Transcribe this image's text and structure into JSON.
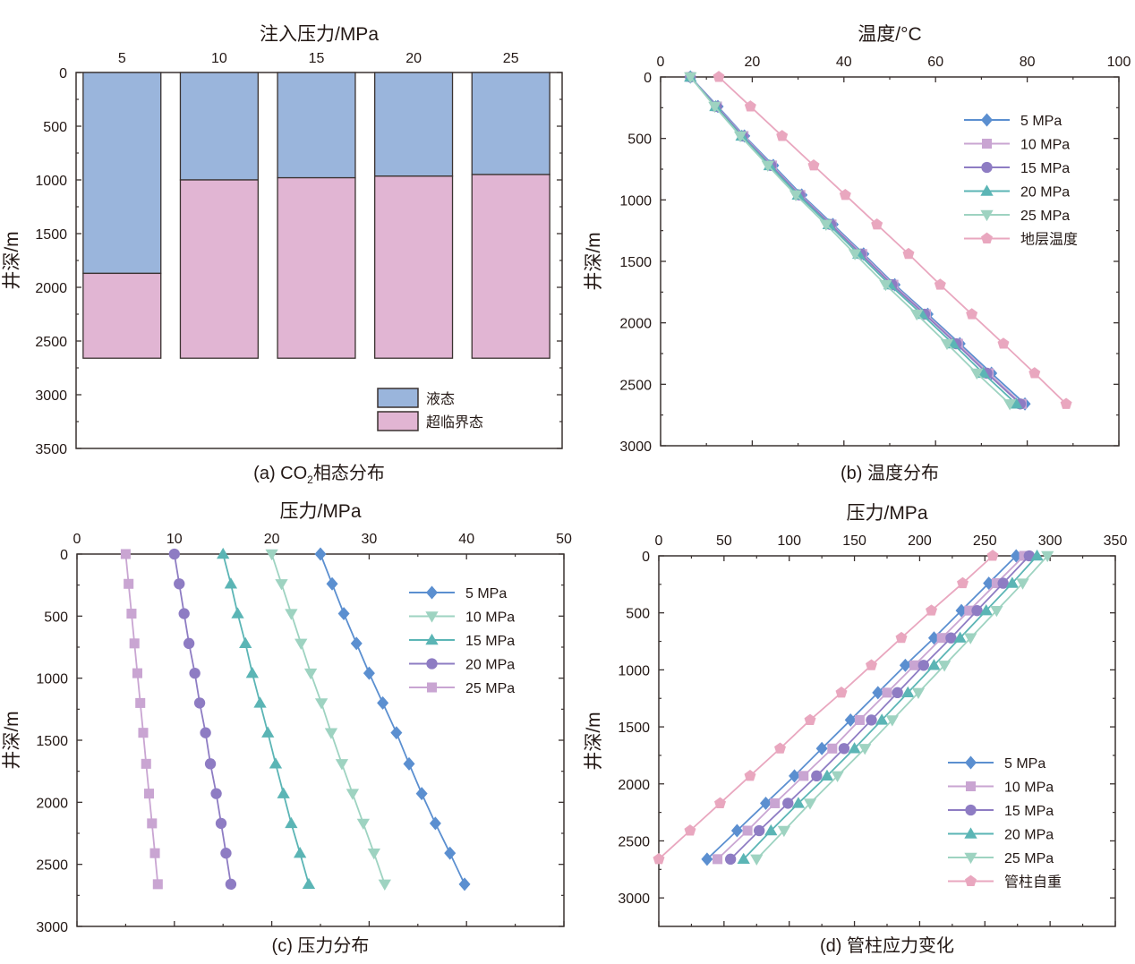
{
  "chart_data": [
    {
      "id": "a",
      "type": "bar",
      "title": "注入压力/MPa",
      "caption": "(a) CO₂相态分布",
      "xlabel": "注入压力/MPa",
      "ylabel": "井深/m",
      "categories": [
        "5",
        "10",
        "15",
        "20",
        "25"
      ],
      "ylim": [
        0,
        3500
      ],
      "yticks": [
        0,
        500,
        1000,
        1500,
        2000,
        2500,
        3000,
        3500
      ],
      "y_inverted": true,
      "total_depth": 2660,
      "series": [
        {
          "name": "液态",
          "color": "#9AB5DC",
          "from": [
            0,
            0,
            0,
            0,
            0
          ],
          "to": [
            1870,
            1000,
            980,
            965,
            950
          ]
        },
        {
          "name": "超临界态",
          "color": "#E1B5D3",
          "from": [
            1870,
            1000,
            980,
            965,
            950
          ],
          "to": [
            2660,
            2660,
            2660,
            2660,
            2660
          ]
        }
      ],
      "legend": {
        "position": "bottom-right",
        "entries": [
          "液态",
          "超临界态"
        ]
      }
    },
    {
      "id": "b",
      "type": "line",
      "title": "温度/°C",
      "caption": "(b) 温度分布",
      "xlabel": "温度/°C",
      "ylabel": "井深/m",
      "xlim": [
        0,
        100
      ],
      "xticks": [
        0,
        20,
        40,
        60,
        80,
        100
      ],
      "ylim": [
        0,
        3000
      ],
      "yticks": [
        0,
        500,
        1000,
        1500,
        2000,
        2500,
        3000
      ],
      "y_inverted": true,
      "depths": [
        0,
        240,
        480,
        720,
        960,
        1200,
        1440,
        1690,
        1930,
        2170,
        2410,
        2660
      ],
      "series": [
        {
          "name": "5 MPa",
          "marker": "diamond",
          "color": "#5B8FD0",
          "values": [
            6.5,
            12.5,
            18.3,
            24.6,
            30.8,
            37.6,
            44.3,
            51.1,
            58.3,
            65.3,
            72.2,
            79.5
          ]
        },
        {
          "name": "10 MPa",
          "marker": "square",
          "color": "#C9A5D2",
          "values": [
            6.5,
            12.3,
            18.1,
            24.3,
            30.5,
            37.3,
            44.0,
            50.8,
            57.9,
            64.9,
            71.6,
            78.8
          ]
        },
        {
          "name": "15 MPa",
          "marker": "circle",
          "color": "#8E7CC3",
          "values": [
            6.5,
            12.2,
            17.9,
            24.1,
            30.3,
            37.1,
            43.7,
            50.5,
            57.6,
            64.5,
            71.2,
            78.5
          ]
        },
        {
          "name": "20 MPa",
          "marker": "triangle-up",
          "color": "#5BB5B5",
          "values": [
            6.5,
            12.0,
            17.7,
            23.8,
            30.0,
            36.7,
            43.2,
            50.0,
            57.0,
            63.8,
            70.4,
            77.6
          ]
        },
        {
          "name": "25 MPa",
          "marker": "triangle-down",
          "color": "#9ED3C1",
          "values": [
            6.5,
            11.8,
            17.4,
            23.4,
            29.5,
            36.1,
            42.4,
            49.1,
            55.9,
            62.5,
            69.0,
            76.2
          ]
        },
        {
          "name": "地层温度",
          "marker": "pentagon",
          "color": "#E9A7BF",
          "values": [
            12.7,
            19.6,
            26.5,
            33.4,
            40.3,
            47.2,
            54.1,
            61.0,
            67.9,
            74.8,
            81.6,
            88.5
          ]
        }
      ],
      "legend": {
        "position": "top-right",
        "entries": [
          "5 MPa",
          "10 MPa",
          "15 MPa",
          "20 MPa",
          "25 MPa",
          "地层温度"
        ]
      }
    },
    {
      "id": "c",
      "type": "line",
      "title": "压力/MPa",
      "caption": "(c) 压力分布",
      "xlabel": "压力/MPa",
      "ylabel": "井深/m",
      "xlim": [
        0,
        50
      ],
      "xticks": [
        0,
        10,
        20,
        30,
        40,
        50
      ],
      "ylim": [
        0,
        3000
      ],
      "yticks": [
        0,
        500,
        1000,
        1500,
        2000,
        2500,
        3000
      ],
      "y_inverted": true,
      "depths": [
        0,
        240,
        480,
        720,
        960,
        1200,
        1440,
        1690,
        1930,
        2170,
        2410,
        2660
      ],
      "series": [
        {
          "name": "5 MPa",
          "marker": "diamond",
          "color": "#5B8FD0",
          "values": [
            25.0,
            26.2,
            27.4,
            28.7,
            30.0,
            31.4,
            32.8,
            34.1,
            35.4,
            36.8,
            38.3,
            39.8
          ]
        },
        {
          "name": "10 MPa",
          "marker": "triangle-down",
          "color": "#9ED3C1",
          "values": [
            20.0,
            21.0,
            22.0,
            23.0,
            24.0,
            25.1,
            26.1,
            27.2,
            28.3,
            29.4,
            30.5,
            31.6
          ]
        },
        {
          "name": "15 MPa",
          "marker": "triangle-up",
          "color": "#5BB5B5",
          "values": [
            15.0,
            15.8,
            16.5,
            17.3,
            18.0,
            18.8,
            19.6,
            20.4,
            21.2,
            22.0,
            22.9,
            23.8
          ]
        },
        {
          "name": "20 MPa",
          "marker": "circle",
          "color": "#8E7CC3",
          "values": [
            10.0,
            10.5,
            11.0,
            11.5,
            12.1,
            12.6,
            13.2,
            13.7,
            14.3,
            14.8,
            15.3,
            15.8
          ]
        },
        {
          "name": "25 MPa",
          "marker": "square",
          "color": "#C9A5D2",
          "values": [
            5.0,
            5.3,
            5.6,
            5.9,
            6.2,
            6.5,
            6.8,
            7.1,
            7.4,
            7.7,
            8.0,
            8.3
          ]
        }
      ],
      "legend": {
        "position": "top-right",
        "entries": [
          "5 MPa",
          "10 MPa",
          "15 MPa",
          "20 MPa",
          "25 MPa"
        ]
      }
    },
    {
      "id": "d",
      "type": "line",
      "title": "压力/MPa",
      "caption": "(d) 管柱应力变化",
      "xlabel": "压力/MPa",
      "ylabel": "井深/m",
      "xlim": [
        0,
        350
      ],
      "xticks": [
        0,
        50,
        100,
        150,
        200,
        250,
        300,
        350
      ],
      "ylim": [
        0,
        3250
      ],
      "yticks": [
        0,
        500,
        1000,
        1500,
        2000,
        2500,
        3000
      ],
      "y_inverted": true,
      "depths": [
        0,
        240,
        480,
        720,
        960,
        1200,
        1440,
        1690,
        1930,
        2170,
        2410,
        2660
      ],
      "series": [
        {
          "name": "5 MPa",
          "marker": "diamond",
          "color": "#5B8FD0",
          "values": [
            274,
            253,
            232,
            211,
            189,
            168,
            147,
            125,
            104,
            82,
            60,
            37
          ]
        },
        {
          "name": "10 MPa",
          "marker": "square",
          "color": "#C9A5D2",
          "values": [
            280,
            259,
            238,
            217,
            196,
            175,
            154,
            133,
            111,
            89,
            68,
            45
          ]
        },
        {
          "name": "15 MPa",
          "marker": "circle",
          "color": "#8E7CC3",
          "values": [
            284,
            264,
            244,
            224,
            203,
            183,
            163,
            142,
            121,
            99,
            77,
            55
          ]
        },
        {
          "name": "20 MPa",
          "marker": "triangle-up",
          "color": "#5BB5B5",
          "values": [
            290,
            271,
            251,
            231,
            211,
            191,
            171,
            150,
            129,
            107,
            86,
            65
          ]
        },
        {
          "name": "25 MPa",
          "marker": "triangle-down",
          "color": "#9ED3C1",
          "values": [
            298,
            279,
            259,
            239,
            219,
            199,
            179,
            158,
            137,
            116,
            96,
            75
          ]
        },
        {
          "name": "管柱自重",
          "marker": "pentagon",
          "color": "#E9A7BF",
          "values": [
            256,
            233,
            209,
            186,
            163,
            140,
            116,
            93,
            70,
            47,
            24,
            0
          ]
        }
      ],
      "legend": {
        "position": "bottom-right",
        "entries": [
          "5 MPa",
          "10 MPa",
          "15 MPa",
          "20 MPa",
          "25 MPa",
          "管柱自重"
        ]
      }
    }
  ]
}
